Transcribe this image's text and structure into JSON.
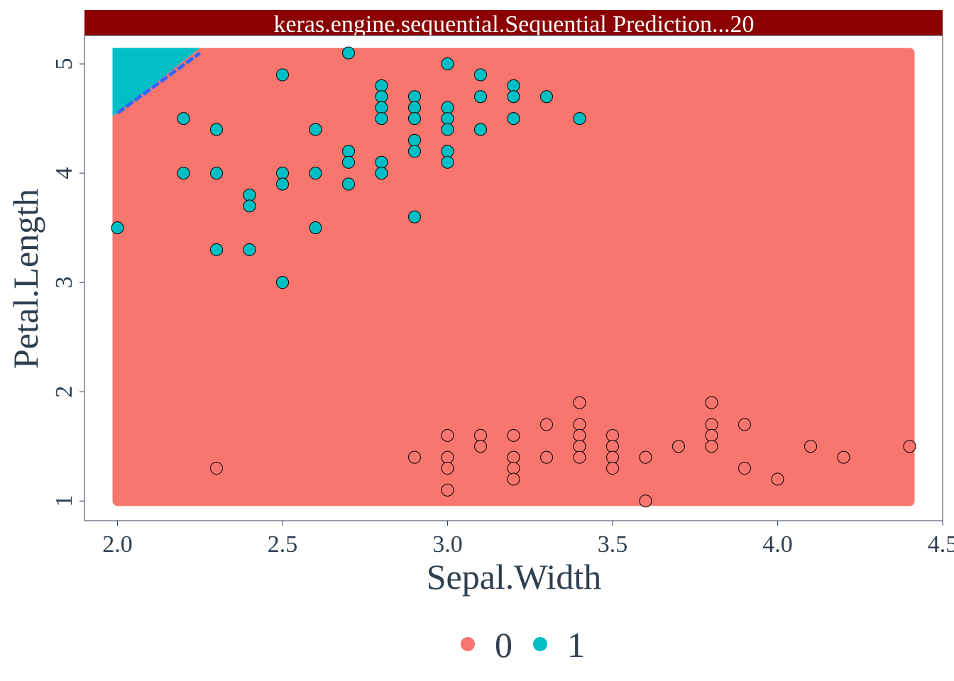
{
  "chart_data": {
    "type": "scatter",
    "title": "keras.engine.sequential.Sequential  Prediction...20",
    "xlabel": "Sepal.Width",
    "ylabel": "Petal.Length",
    "xlim": [
      1.9,
      4.5
    ],
    "ylim": [
      0.82,
      5.26
    ],
    "x_ticks": [
      "2.0",
      "2.5",
      "3.0",
      "3.5",
      "4.0",
      "4.5"
    ],
    "y_ticks": [
      "1",
      "2",
      "3",
      "4",
      "5"
    ],
    "grid": false,
    "legend": {
      "position": "bottom",
      "entries": [
        "0",
        "1"
      ]
    },
    "colors": {
      "class_0": "#F8766D",
      "class_1": "#00BFC4",
      "title_bar": "#8B0000",
      "boundary": "#3366FF",
      "axis_text": "#2F3F4F"
    },
    "prediction_region": {
      "x_range": [
        2.0,
        4.4
      ],
      "y_range": [
        1.0,
        5.1
      ],
      "class_1_corner": [
        [
          2.0,
          4.55
        ],
        [
          2.25,
          5.1
        ],
        [
          2.0,
          5.1
        ]
      ]
    },
    "decision_boundary": [
      [
        2.0,
        4.55
      ],
      [
        2.25,
        5.1
      ]
    ],
    "series": [
      {
        "name": "1",
        "points": [
          [
            2.0,
            3.5
          ],
          [
            2.2,
            4.5
          ],
          [
            2.2,
            4.0
          ],
          [
            2.3,
            4.4
          ],
          [
            2.3,
            4.0
          ],
          [
            2.3,
            3.3
          ],
          [
            2.4,
            3.8
          ],
          [
            2.4,
            3.7
          ],
          [
            2.4,
            3.3
          ],
          [
            2.5,
            4.9
          ],
          [
            2.5,
            4.0
          ],
          [
            2.5,
            3.9
          ],
          [
            2.5,
            3.0
          ],
          [
            2.6,
            4.4
          ],
          [
            2.6,
            4.0
          ],
          [
            2.6,
            3.5
          ],
          [
            2.7,
            5.1
          ],
          [
            2.7,
            4.2
          ],
          [
            2.7,
            4.1
          ],
          [
            2.7,
            3.9
          ],
          [
            2.8,
            4.8
          ],
          [
            2.8,
            4.7
          ],
          [
            2.8,
            4.6
          ],
          [
            2.8,
            4.5
          ],
          [
            2.8,
            4.1
          ],
          [
            2.8,
            4.0
          ],
          [
            2.9,
            4.7
          ],
          [
            2.9,
            4.6
          ],
          [
            2.9,
            4.5
          ],
          [
            2.9,
            4.3
          ],
          [
            2.9,
            4.2
          ],
          [
            2.9,
            3.6
          ],
          [
            3.0,
            5.0
          ],
          [
            3.0,
            4.6
          ],
          [
            3.0,
            4.5
          ],
          [
            3.0,
            4.4
          ],
          [
            3.0,
            4.2
          ],
          [
            3.0,
            4.1
          ],
          [
            3.1,
            4.9
          ],
          [
            3.1,
            4.7
          ],
          [
            3.1,
            4.4
          ],
          [
            3.2,
            4.8
          ],
          [
            3.2,
            4.7
          ],
          [
            3.2,
            4.5
          ],
          [
            3.3,
            4.7
          ],
          [
            3.4,
            4.5
          ]
        ]
      },
      {
        "name": "0",
        "points": [
          [
            2.3,
            1.3
          ],
          [
            2.9,
            1.4
          ],
          [
            3.0,
            1.6
          ],
          [
            3.0,
            1.4
          ],
          [
            3.0,
            1.3
          ],
          [
            3.0,
            1.1
          ],
          [
            3.1,
            1.6
          ],
          [
            3.1,
            1.5
          ],
          [
            3.2,
            1.6
          ],
          [
            3.2,
            1.4
          ],
          [
            3.2,
            1.3
          ],
          [
            3.2,
            1.2
          ],
          [
            3.3,
            1.7
          ],
          [
            3.3,
            1.4
          ],
          [
            3.4,
            1.9
          ],
          [
            3.4,
            1.7
          ],
          [
            3.4,
            1.6
          ],
          [
            3.4,
            1.5
          ],
          [
            3.4,
            1.4
          ],
          [
            3.5,
            1.6
          ],
          [
            3.5,
            1.5
          ],
          [
            3.5,
            1.4
          ],
          [
            3.5,
            1.3
          ],
          [
            3.6,
            1.4
          ],
          [
            3.6,
            1.0
          ],
          [
            3.7,
            1.5
          ],
          [
            3.8,
            1.9
          ],
          [
            3.8,
            1.7
          ],
          [
            3.8,
            1.6
          ],
          [
            3.8,
            1.5
          ],
          [
            3.9,
            1.7
          ],
          [
            3.9,
            1.3
          ],
          [
            4.0,
            1.2
          ],
          [
            4.1,
            1.5
          ],
          [
            4.2,
            1.4
          ],
          [
            4.4,
            1.5
          ]
        ]
      }
    ]
  }
}
